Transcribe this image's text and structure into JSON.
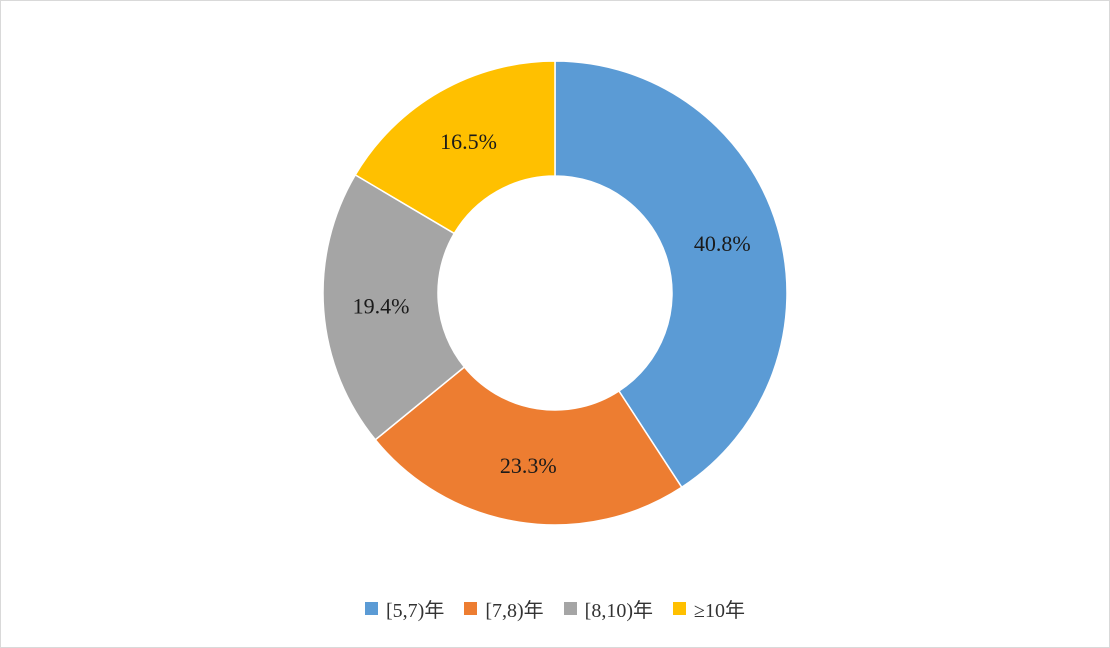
{
  "chart_data": {
    "type": "pie",
    "variant": "donut",
    "title": "",
    "categories": [
      "[5,7)年",
      "[7,8)年",
      "[8,10)年",
      "≥10年"
    ],
    "values": [
      40.8,
      23.3,
      19.4,
      16.5
    ],
    "labels": [
      "40.8%",
      "23.3%",
      "19.4%",
      "16.5%"
    ],
    "unit": "%",
    "colors": [
      "#5B9BD5",
      "#ED7D31",
      "#A5A5A5",
      "#FFC000"
    ],
    "legend_position": "bottom",
    "start_angle": "12 o'clock",
    "direction": "clockwise"
  }
}
